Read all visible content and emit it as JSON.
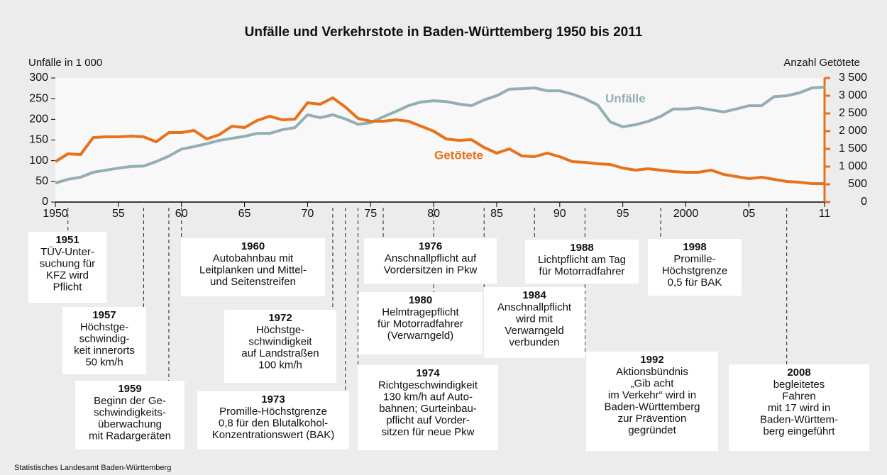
{
  "chart_data": {
    "type": "line",
    "title": "Unfälle und Verkehrstote in Baden-Württemberg 1950 bis 2011",
    "y_label": "Unfälle in 1 000",
    "y2_label": "Anzahl Getötete",
    "source": "Statistisches Landesamt Baden-Württemberg",
    "x": [
      1950,
      1951,
      1952,
      1953,
      1954,
      1955,
      1956,
      1957,
      1958,
      1959,
      1960,
      1961,
      1962,
      1963,
      1964,
      1965,
      1966,
      1967,
      1968,
      1969,
      1970,
      1971,
      1972,
      1973,
      1974,
      1975,
      1976,
      1977,
      1978,
      1979,
      1980,
      1981,
      1982,
      1983,
      1984,
      1985,
      1986,
      1987,
      1988,
      1989,
      1990,
      1991,
      1992,
      1993,
      1994,
      1995,
      1996,
      1997,
      1998,
      1999,
      2000,
      2001,
      2002,
      2003,
      2004,
      2005,
      2006,
      2007,
      2008,
      2009,
      2010,
      2011
    ],
    "xlim": [
      1950,
      2011
    ],
    "xticks": [
      1950,
      {
        "value": 1955,
        "label": "55"
      },
      {
        "value": 1960,
        "label": "60"
      },
      {
        "value": 1965,
        "label": "65"
      },
      {
        "value": 1970,
        "label": "70"
      },
      {
        "value": 1975,
        "label": "75"
      },
      {
        "value": 1980,
        "label": "80"
      },
      {
        "value": 1985,
        "label": "85"
      },
      {
        "value": 1990,
        "label": "90"
      },
      {
        "value": 1995,
        "label": "95"
      },
      2000,
      {
        "value": 2005,
        "label": "05"
      },
      {
        "value": 2011,
        "label": "11"
      }
    ],
    "ylim": [
      0,
      300
    ],
    "yticks": [
      0,
      50,
      100,
      150,
      200,
      250,
      300
    ],
    "y2lim": [
      0,
      3500
    ],
    "y2ticks": [
      0,
      500,
      {
        "value": 1000,
        "label": "1 000"
      },
      {
        "value": 1500,
        "label": "1 500"
      },
      {
        "value": 2000,
        "label": "2 000"
      },
      {
        "value": 2500,
        "label": "2 500"
      },
      {
        "value": 3000,
        "label": "3 000"
      },
      {
        "value": 3500,
        "label": "3 500"
      }
    ],
    "series": [
      {
        "name": "Unfälle",
        "color": "#93afb3",
        "values": [
          46,
          55,
          60,
          72,
          77,
          82,
          86,
          87,
          98,
          111,
          128,
          134,
          141,
          149,
          154,
          159,
          166,
          166,
          175,
          180,
          211,
          204,
          211,
          201,
          188,
          192,
          206,
          219,
          233,
          242,
          245,
          243,
          237,
          233,
          247,
          257,
          273,
          274,
          276,
          269,
          269,
          261,
          250,
          235,
          194,
          182,
          187,
          195,
          207,
          225,
          225,
          228,
          223,
          218,
          225,
          233,
          233,
          255,
          257,
          264,
          276,
          278
        ]
      },
      {
        "name": "Getötete",
        "color": "#e8711c",
        "axis": "y2",
        "values": [
          1140,
          1360,
          1340,
          1820,
          1840,
          1840,
          1860,
          1840,
          1700,
          1960,
          1960,
          2020,
          1780,
          1900,
          2140,
          2100,
          2300,
          2420,
          2320,
          2340,
          2800,
          2760,
          2940,
          2680,
          2360,
          2280,
          2280,
          2320,
          2280,
          2140,
          2000,
          1780,
          1740,
          1760,
          1540,
          1380,
          1500,
          1300,
          1280,
          1380,
          1280,
          1140,
          1120,
          1080,
          1060,
          960,
          900,
          940,
          900,
          860,
          840,
          840,
          900,
          780,
          720,
          660,
          700,
          640,
          580,
          560,
          520,
          520
        ]
      }
    ],
    "annotations": [
      {
        "x": 1951,
        "lines": [
          "TÜV-Unter-",
          "suchung für",
          "KFZ wird",
          "Pflicht"
        ]
      },
      {
        "x": 1957,
        "lines": [
          "Höchstge-",
          "schwindig-",
          "keit innerorts",
          "50 km/h"
        ]
      },
      {
        "x": 1959,
        "lines": [
          "Beginn der Ge-",
          "schwindigkeits-",
          "überwachung",
          "mit Radargeräten"
        ]
      },
      {
        "x": 1960,
        "lines": [
          "Autobahnbau mit",
          "Leitplanken und Mittel-",
          "und Seitenstreifen"
        ]
      },
      {
        "x": 1972,
        "lines": [
          "Höchstge-",
          "schwindigkeit",
          "auf Landstraßen",
          "100 km/h"
        ]
      },
      {
        "x": 1973,
        "lines": [
          "Promille-Höchstgrenze",
          "0,8 für den Blutalkohol-",
          "Konzentrationswert (BAK)"
        ]
      },
      {
        "x": 1974,
        "lines": [
          "Richtgeschwindigkeit",
          "130 km/h auf Auto-",
          "bahnen; Gurteinbau-",
          "pflicht auf Vorder-",
          "sitzen für neue Pkw"
        ]
      },
      {
        "x": 1976,
        "lines": [
          "Anschnallpflicht auf",
          "Vordersitzen in Pkw"
        ]
      },
      {
        "x": 1980,
        "lines": [
          "Helmtragepflicht",
          "für Motorradfahrer",
          "(Verwarngeld)"
        ]
      },
      {
        "x": 1984,
        "lines": [
          "Anschnallpflicht",
          "wird mit",
          "Verwarngeld",
          "verbunden"
        ]
      },
      {
        "x": 1988,
        "lines": [
          "Lichtpflicht am Tag",
          "für Motorradfahrer"
        ]
      },
      {
        "x": 1992,
        "lines": [
          "Aktionsbündnis",
          "„Gib acht",
          "im Verkehr“ wird in",
          "Baden-Württemberg",
          "zur Prävention",
          "gegründet"
        ]
      },
      {
        "x": 1998,
        "lines": [
          "Promille-",
          "Höchstgrenze",
          "0,5 für BAK"
        ]
      },
      {
        "x": 2008,
        "lines": [
          "begleitetes",
          "Fahren",
          "mit 17 wird in",
          "Baden-Württem-",
          "berg eingeführt"
        ]
      }
    ]
  }
}
